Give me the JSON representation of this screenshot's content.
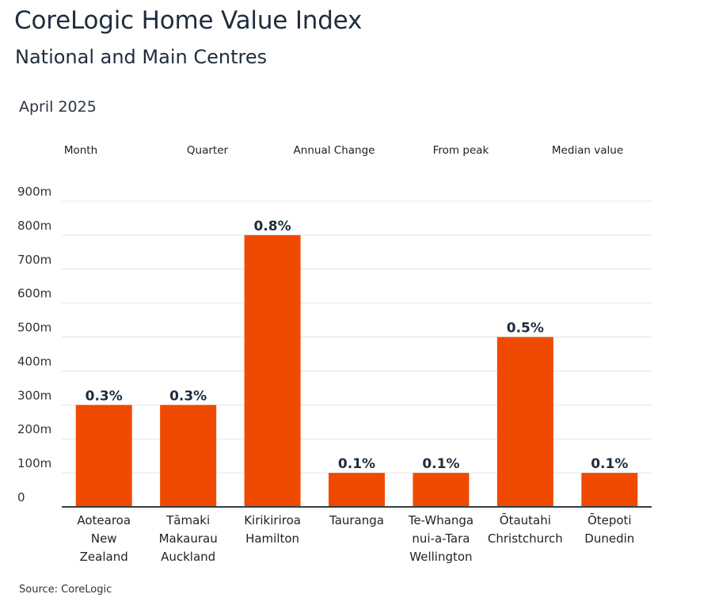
{
  "header": {
    "title": "CoreLogic Home Value Index",
    "subtitle": "National and Main Centres",
    "date": "April 2025"
  },
  "tabs": [
    "Month",
    "Quarter",
    "Annual Change",
    "From peak",
    "Median value"
  ],
  "footer": {
    "source": "Source: CoreLogic"
  },
  "colors": {
    "bar": "#f04a00",
    "grid": "#e4e4e4",
    "axis": "#333f48",
    "text": "#1f2d3d"
  },
  "chart_data": {
    "type": "bar",
    "categories": [
      [
        "Aotearoa",
        "New",
        "Zealand"
      ],
      [
        "Tāmaki",
        "Makaurau",
        "Auckland"
      ],
      [
        "Kirikiriroa",
        "Hamilton"
      ],
      [
        "Tauranga"
      ],
      [
        "Te-Whanga",
        "nui-a-Tara",
        "Wellington"
      ],
      [
        "Ōtautahi",
        "Christchurch"
      ],
      [
        "Ōtepoti",
        "Dunedin"
      ]
    ],
    "values": [
      300,
      300,
      800,
      100,
      100,
      500,
      100
    ],
    "data_labels": [
      "0.3%",
      "0.3%",
      "0.8%",
      "0.1%",
      "0.1%",
      "0.5%",
      "0.1%"
    ],
    "y_ticks": [
      "0",
      "100m",
      "200m",
      "300m",
      "400m",
      "500m",
      "600m",
      "700m",
      "800m",
      "900m"
    ],
    "ylim": [
      0,
      900
    ],
    "grid": true
  }
}
